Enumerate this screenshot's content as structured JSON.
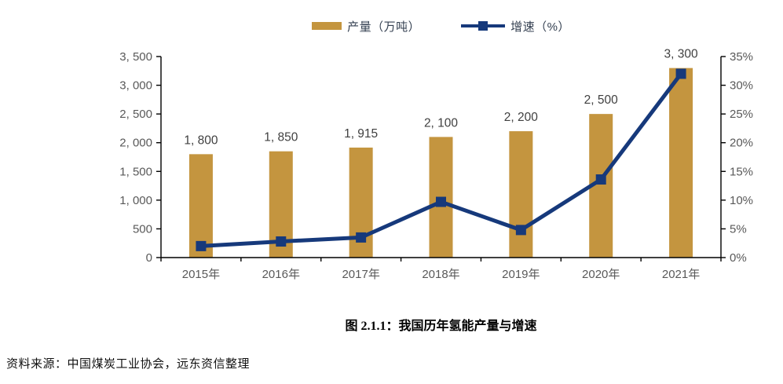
{
  "caption": "图 2.1.1：我国历年氢能产量与增速",
  "source": "资料来源：中国煤炭工业协会，远东资信整理",
  "legend": {
    "production_label": "产量（万吨）",
    "growth_label": "增速（%）"
  },
  "colors": {
    "bar_gold": "#C4953F",
    "line_navy": "#16397B",
    "axis_black": "#000000",
    "tick_label_gray": "#595959",
    "value_label_gray": "#3F3F3F",
    "legend_text": "#333F50"
  },
  "chart_data": {
    "type": "bar",
    "combo": "bar+line",
    "title": "图 2.1.1：我国历年氢能产量与增速",
    "categories": [
      "2015年",
      "2016年",
      "2017年",
      "2018年",
      "2019年",
      "2020年",
      "2021年"
    ],
    "series": [
      {
        "name": "产量（万吨）",
        "type": "bar",
        "axis": "left",
        "color": "#C4953F",
        "values": [
          1800,
          1850,
          1915,
          2100,
          2200,
          2500,
          3300
        ],
        "value_labels": [
          "1, 800",
          "1, 850",
          "1, 915",
          "2, 100",
          "2, 200",
          "2, 500",
          "3, 300"
        ]
      },
      {
        "name": "增速（%）",
        "type": "line",
        "axis": "right",
        "color": "#16397B",
        "values": [
          2.0,
          2.8,
          3.5,
          9.7,
          4.8,
          13.6,
          32.0
        ]
      }
    ],
    "left_axis": {
      "min": 0,
      "max": 3500,
      "step": 500,
      "tick_labels": [
        "0",
        "500",
        "1, 000",
        "1, 500",
        "2, 000",
        "2, 500",
        "3, 000",
        "3, 500"
      ]
    },
    "right_axis": {
      "min": 0,
      "max": 35,
      "step": 5,
      "tick_labels": [
        "0%",
        "5%",
        "10%",
        "15%",
        "20%",
        "25%",
        "30%",
        "35%"
      ]
    },
    "grid": false,
    "legend_position": "top-center"
  }
}
